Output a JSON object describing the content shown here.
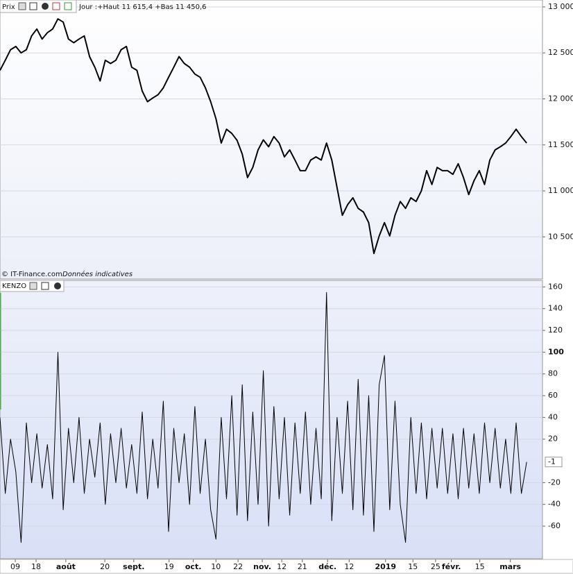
{
  "chart_data": [
    {
      "type": "line",
      "title": "Prix",
      "subtitle": "Jour :+Haut 11 615,4 +Bas 11 450,6",
      "source": "© IT-Finance.com",
      "note": "Données indicatives",
      "x": [
        0,
        1,
        2,
        3,
        4,
        5,
        6,
        7,
        8,
        9,
        10,
        11,
        12,
        13,
        14,
        15,
        16,
        17,
        18,
        19,
        20,
        21,
        22,
        23,
        24,
        25,
        26,
        27,
        28,
        29,
        30,
        31,
        32,
        33,
        34,
        35,
        36,
        37,
        38,
        39,
        40,
        41,
        42,
        43,
        44,
        45,
        46,
        47,
        48,
        49,
        50,
        51,
        52,
        53,
        54,
        55,
        56,
        57,
        58,
        59,
        60,
        61,
        62,
        63,
        64,
        65,
        66,
        67,
        68,
        69,
        70,
        71,
        72,
        73,
        74,
        75,
        76,
        77,
        78,
        79,
        80,
        81,
        82,
        83,
        84,
        85,
        86,
        87,
        88,
        89,
        90,
        91,
        92,
        93,
        94,
        95,
        96,
        97,
        98,
        99,
        100
      ],
      "series": [
        {
          "name": "Prix",
          "color": "#000000",
          "values": [
            12310,
            12420,
            12535,
            12570,
            12500,
            12535,
            12685,
            12760,
            12650,
            12720,
            12760,
            12870,
            12835,
            12650,
            12610,
            12650,
            12685,
            12460,
            12345,
            12195,
            12420,
            12385,
            12420,
            12535,
            12570,
            12345,
            12310,
            12085,
            11970,
            12010,
            12045,
            12120,
            12235,
            12345,
            12460,
            12385,
            12345,
            12270,
            12235,
            12120,
            11970,
            11785,
            11520,
            11670,
            11625,
            11550,
            11400,
            11145,
            11255,
            11445,
            11555,
            11480,
            11590,
            11520,
            11370,
            11445,
            11335,
            11220,
            11220,
            11335,
            11370,
            11335,
            11520,
            11335,
            11035,
            10735,
            10850,
            10925,
            10810,
            10770,
            10655,
            10320,
            10510,
            10655,
            10510,
            10735,
            10885,
            10810,
            10925,
            10885,
            11000,
            11220,
            11070,
            11255,
            11220,
            11220,
            11180,
            11295,
            11145,
            10960,
            11110,
            11220,
            11070,
            11335,
            11445,
            11480,
            11520,
            11590,
            11670,
            11590,
            11520
          ]
        }
      ],
      "xlim": [
        0,
        103
      ],
      "ylim": [
        10042,
        13060
      ],
      "yticks": [
        {
          "value": 10500,
          "label": "10 500"
        },
        {
          "value": 11000,
          "label": "11 000"
        },
        {
          "value": 11500,
          "label": "11 500"
        },
        {
          "value": 12000,
          "label": "12 000"
        },
        {
          "value": 12500,
          "label": "12 500"
        },
        {
          "value": 13000,
          "label": "13 000"
        }
      ],
      "grid": true
    },
    {
      "type": "line",
      "title": "KENZO",
      "x": [
        0,
        1,
        2,
        3,
        4,
        5,
        6,
        7,
        8,
        9,
        10,
        11,
        12,
        13,
        14,
        15,
        16,
        17,
        18,
        19,
        20,
        21,
        22,
        23,
        24,
        25,
        26,
        27,
        28,
        29,
        30,
        31,
        32,
        33,
        34,
        35,
        36,
        37,
        38,
        39,
        40,
        41,
        42,
        43,
        44,
        45,
        46,
        47,
        48,
        49,
        50,
        51,
        52,
        53,
        54,
        55,
        56,
        57,
        58,
        59,
        60,
        61,
        62,
        63,
        64,
        65,
        66,
        67,
        68,
        69,
        70,
        71,
        72,
        73,
        74,
        75,
        76,
        77,
        78,
        79,
        80,
        81,
        82,
        83,
        84,
        85,
        86,
        87,
        88,
        89,
        90,
        91,
        92,
        93,
        94,
        95,
        96,
        97,
        98,
        99,
        100
      ],
      "series": [
        {
          "name": "KENZO",
          "color": "#000000",
          "values": [
            40,
            -30,
            20,
            -10,
            -75,
            35,
            -20,
            25,
            -25,
            15,
            -35,
            100,
            -45,
            30,
            -20,
            40,
            -30,
            20,
            -15,
            35,
            -40,
            25,
            -20,
            30,
            -25,
            15,
            -30,
            45,
            -35,
            20,
            -25,
            55,
            -65,
            30,
            -20,
            25,
            -40,
            50,
            -30,
            20,
            -45,
            -72,
            40,
            -35,
            60,
            -50,
            70,
            -55,
            45,
            -40,
            83,
            -60,
            50,
            -35,
            40,
            -50,
            35,
            -30,
            45,
            -40,
            30,
            -35,
            155,
            -55,
            40,
            -30,
            55,
            -45,
            75,
            -50,
            60,
            -65,
            70,
            97,
            -45,
            55,
            -40,
            -75,
            40,
            -30,
            35,
            -35,
            30,
            -25,
            30,
            -30,
            25,
            -35,
            30,
            -25,
            25,
            -30,
            35,
            -20,
            30,
            -25,
            20,
            -30,
            35,
            -30,
            -1
          ]
        }
      ],
      "xlim": [
        0,
        103
      ],
      "ylim": [
        -90,
        166
      ],
      "yticks": [
        -60,
        -40,
        -20,
        20,
        40,
        60,
        80,
        100,
        120,
        140,
        160
      ],
      "xticks": [
        {
          "value": 2.9,
          "label": "09"
        },
        {
          "value": 6.85,
          "label": "18"
        },
        {
          "value": 12.5,
          "label": "août"
        },
        {
          "value": 19.9,
          "label": "20"
        },
        {
          "value": 25.4,
          "label": "sept."
        },
        {
          "value": 32.1,
          "label": "19"
        },
        {
          "value": 36.7,
          "label": "oct."
        },
        {
          "value": 41,
          "label": "10"
        },
        {
          "value": 45.2,
          "label": "22"
        },
        {
          "value": 49.8,
          "label": "nov."
        },
        {
          "value": 53.5,
          "label": "12"
        },
        {
          "value": 57.4,
          "label": "21"
        },
        {
          "value": 62.2,
          "label": "déc."
        },
        {
          "value": 66.3,
          "label": "12"
        },
        {
          "value": 73.2,
          "label": "2019"
        },
        {
          "value": 78.4,
          "label": "15"
        },
        {
          "value": 82.7,
          "label": "25"
        },
        {
          "value": 85.7,
          "label": "févr."
        },
        {
          "value": 91.1,
          "label": "15"
        },
        {
          "value": 96.9,
          "label": "mars"
        }
      ],
      "grid": true
    }
  ]
}
